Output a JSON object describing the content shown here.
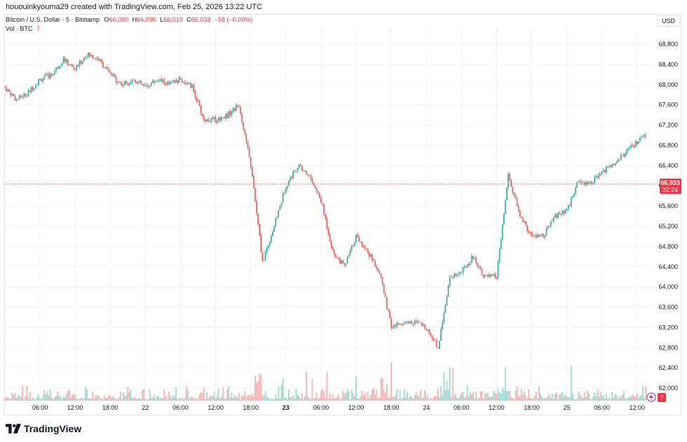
{
  "header": {
    "attribution": "hououinkyouma29 created with TradingView.com, Feb 25, 2026 13:22 UTC"
  },
  "legend": {
    "symbol": "Bitcoin / U.S. Dollar · 5 · Bitstamp",
    "open_label": "O",
    "open_value": "66,090",
    "high_label": "H",
    "high_value": "66,090",
    "low_label": "L",
    "low_value": "66,019",
    "close_label": "C",
    "close_value": "66,033",
    "change": "−58 (−0.09%)",
    "volume_label": "Vol · BTC",
    "volume_value": "7"
  },
  "currency_button": "USD",
  "price_axis": {
    "ticks": [
      "68,800",
      "68,400",
      "68,000",
      "67,600",
      "67,200",
      "66,800",
      "66,400",
      "66,000",
      "65,600",
      "65,200",
      "64,800",
      "64,400",
      "64,000",
      "63,600",
      "63,200",
      "62,800",
      "62,400",
      "62,000"
    ],
    "last_price": "66,033",
    "countdown": "02:24",
    "volume_badge": "7"
  },
  "time_axis": {
    "ticks": [
      "06:00",
      "12:00",
      "18:00",
      "22",
      "06:00",
      "12:00",
      "18:00",
      "23",
      "06:00",
      "12:00",
      "18:00",
      "24",
      "06:00",
      "12:00",
      "18:00",
      "25",
      "06:00",
      "12:00"
    ],
    "bold": [
      "23"
    ]
  },
  "footer": {
    "brand": "TradingView"
  },
  "colors": {
    "up": "#26a69a",
    "down": "#ef5350",
    "up_vol": "#9fd8d1",
    "down_vol": "#f7b3b1",
    "last_price": "#f23645",
    "grid": "#f0f3fa"
  },
  "chart_data": {
    "type": "candlestick",
    "instrument": "Bitcoin / U.S. Dollar",
    "exchange": "Bitstamp",
    "interval": "5",
    "currency": "USD",
    "ylim": [
      61900,
      69000
    ],
    "grid": true,
    "last": {
      "open": 66090,
      "high": 66090,
      "low": 66019,
      "close": 66033,
      "volume": 7
    },
    "path_hours": [
      0,
      2,
      4,
      6,
      8,
      10,
      12,
      14,
      16,
      18,
      20,
      22,
      24,
      26,
      28,
      30,
      32,
      34,
      36,
      38,
      40,
      42,
      44,
      46,
      48,
      50,
      52,
      54,
      56,
      58,
      60,
      62,
      64,
      66,
      68,
      70,
      72,
      74,
      76,
      78,
      80,
      82,
      84,
      86,
      88,
      90,
      92,
      94,
      96,
      98,
      100
    ],
    "path_prices": [
      67950,
      67700,
      67850,
      68100,
      68200,
      68500,
      68300,
      68600,
      68500,
      68200,
      68000,
      68100,
      67950,
      68100,
      68000,
      68100,
      67950,
      67300,
      67300,
      67400,
      67600,
      66400,
      64500,
      65200,
      66000,
      66400,
      66200,
      65700,
      64700,
      64400,
      65000,
      64700,
      64300,
      63200,
      63300,
      63300,
      63200,
      62800,
      64200,
      64300,
      64600,
      64200,
      64200,
      66200,
      65400,
      65000,
      65000,
      65400,
      65500,
      66100,
      66050
    ],
    "time_labels": [
      {
        "label": "06:00",
        "hour": 6
      },
      {
        "label": "12:00",
        "hour": 12
      },
      {
        "label": "18:00",
        "hour": 18
      },
      {
        "label": "22",
        "hour": 24
      },
      {
        "label": "06:00",
        "hour": 30
      },
      {
        "label": "12:00",
        "hour": 36
      },
      {
        "label": "18:00",
        "hour": 42
      },
      {
        "label": "23",
        "hour": 48
      },
      {
        "label": "06:00",
        "hour": 54
      },
      {
        "label": "12:00",
        "hour": 60
      },
      {
        "label": "18:00",
        "hour": 66
      },
      {
        "label": "24",
        "hour": 72
      },
      {
        "label": "06:00",
        "hour": 78
      },
      {
        "label": "12:00",
        "hour": 84
      },
      {
        "label": "18:00",
        "hour": 90
      },
      {
        "label": "25",
        "hour": 96
      },
      {
        "label": "06:00",
        "hour": 102
      },
      {
        "label": "12:00",
        "hour": 108
      }
    ]
  }
}
